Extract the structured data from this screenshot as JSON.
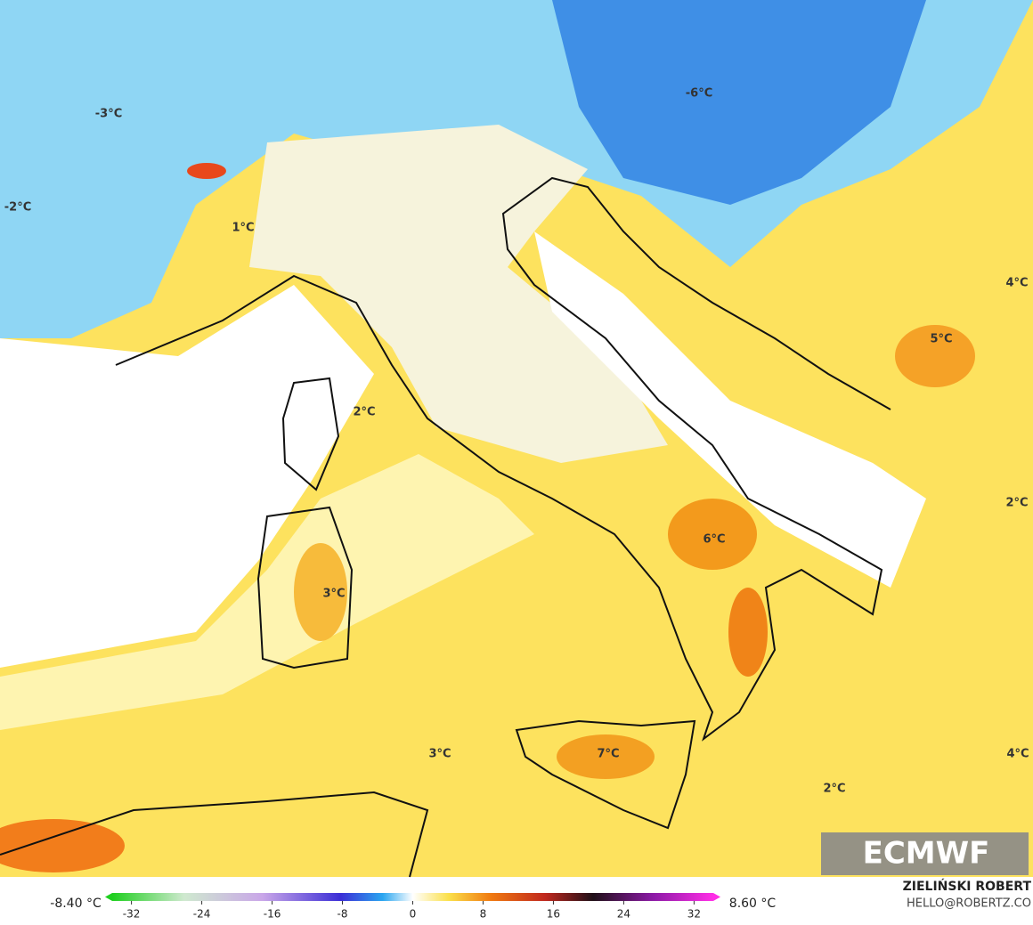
{
  "map": {
    "labels": [
      "-6°C",
      "-3°C",
      "-2°C",
      "1°C",
      "2°C",
      "5°C",
      "4°C",
      "6°C",
      "3°C",
      "7°C",
      "3°C",
      "2°C",
      "2°C",
      "4°C"
    ]
  },
  "colorbar": {
    "min_label": "-8.40 °C",
    "max_label": "8.60 °C",
    "lim": [
      -35,
      35
    ],
    "ticks": [
      -32,
      -24,
      -16,
      -8,
      0,
      8,
      16,
      24,
      32
    ]
  },
  "credit": {
    "name": "ZIELIŃSKI ROBERT",
    "email": "HELLO@ROBERTZ.CO"
  },
  "logo": "ECMWF"
}
